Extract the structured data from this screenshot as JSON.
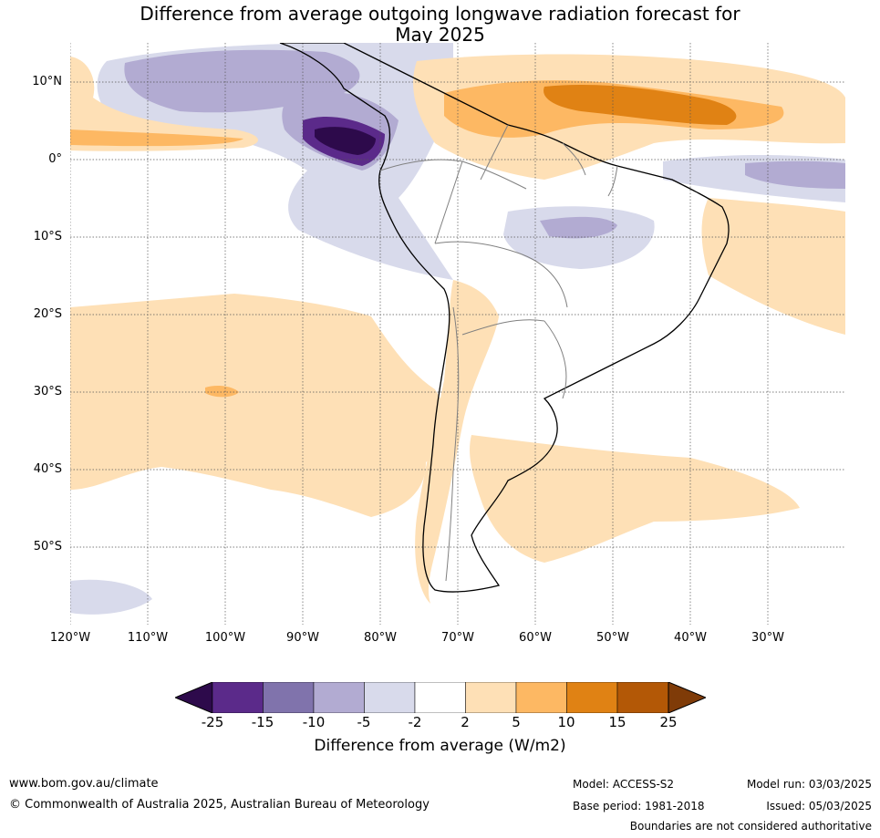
{
  "title": {
    "line1": "Difference from average outgoing longwave radiation forecast for",
    "line2": "May 2025"
  },
  "map": {
    "lat_labels": [
      "10°N",
      "0°",
      "10°S",
      "20°S",
      "30°S",
      "40°S",
      "50°S"
    ],
    "lon_labels": [
      "120°W",
      "110°W",
      "100°W",
      "90°W",
      "80°W",
      "70°W",
      "60°W",
      "50°W",
      "40°W",
      "30°W"
    ]
  },
  "colorbar": {
    "ticks": [
      "-25",
      "-15",
      "-10",
      "-5",
      "-2",
      "2",
      "5",
      "10",
      "15",
      "25"
    ],
    "label": "Difference from average (W/m2)",
    "colors": [
      "#2d0a4b",
      "#5b2a8a",
      "#8073ac",
      "#b2abd2",
      "#d8daeb",
      "#ffffff",
      "#fee0b6",
      "#fdb863",
      "#e08214",
      "#b35806",
      "#7f3b08"
    ]
  },
  "footer": {
    "website": "www.bom.gov.au/climate",
    "copyright": "© Commonwealth of Australia 2025, Australian Bureau of Meteorology",
    "model": "Model: ACCESS-S2",
    "base_period": "Base period: 1981-2018",
    "model_run": "Model run: 03/03/2025",
    "issued": "Issued: 05/03/2025",
    "disclaimer": "Boundaries are not considered authoritative"
  }
}
